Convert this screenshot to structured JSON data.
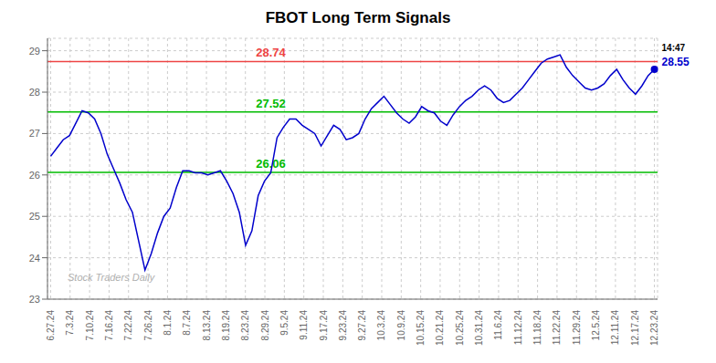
{
  "chart_data": {
    "type": "line",
    "title": "FBOT Long Term Signals",
    "x": [
      0,
      1,
      2,
      3,
      4,
      5,
      6,
      7,
      8,
      9,
      10,
      11,
      12,
      13,
      14,
      15,
      16,
      17,
      18,
      19,
      20,
      21,
      22,
      23,
      24,
      25,
      26,
      27,
      28,
      29,
      30,
      31,
      32,
      33,
      34,
      35,
      36,
      37,
      38,
      39,
      40,
      41,
      42,
      43,
      44,
      45,
      46,
      47,
      48,
      49,
      50,
      51,
      52,
      53,
      54,
      55,
      56,
      57,
      58,
      59,
      60,
      61,
      62,
      63,
      64,
      65,
      66,
      67,
      68,
      69,
      70,
      71,
      72,
      73,
      74,
      75,
      76,
      77,
      78,
      79,
      80,
      81,
      82,
      83,
      84,
      85,
      86,
      87,
      88,
      89,
      90,
      91,
      92,
      93,
      94,
      95,
      96
    ],
    "values": [
      26.45,
      26.65,
      26.85,
      26.95,
      27.25,
      27.55,
      27.5,
      27.35,
      27.0,
      26.5,
      26.15,
      25.8,
      25.4,
      25.1,
      24.4,
      23.7,
      24.1,
      24.6,
      25.0,
      25.2,
      25.7,
      26.1,
      26.1,
      26.05,
      26.05,
      26.0,
      26.05,
      26.1,
      25.85,
      25.55,
      25.1,
      24.3,
      24.65,
      25.5,
      25.85,
      26.05,
      26.9,
      27.15,
      27.35,
      27.35,
      27.2,
      27.1,
      27.0,
      26.7,
      26.95,
      27.2,
      27.1,
      26.85,
      26.9,
      27.0,
      27.35,
      27.6,
      27.75,
      27.9,
      27.7,
      27.5,
      27.35,
      27.25,
      27.4,
      27.65,
      27.55,
      27.5,
      27.3,
      27.2,
      27.45,
      27.65,
      27.8,
      27.9,
      28.05,
      28.15,
      28.05,
      27.85,
      27.75,
      27.8,
      27.95,
      28.1,
      28.3,
      28.5,
      28.7,
      28.8,
      28.85,
      28.9,
      28.6,
      28.4,
      28.25,
      28.1,
      28.05,
      28.1,
      28.2,
      28.4,
      28.55,
      28.3,
      28.1,
      27.95,
      28.15,
      28.4,
      28.55
    ],
    "color": "#0000cc",
    "xlim": [
      -0.5,
      96.5
    ],
    "xticks": [
      {
        "value": 0,
        "label": "6.27.24"
      },
      {
        "value": 3.0967741935,
        "label": "7.3.24"
      },
      {
        "value": 6.1935483871,
        "label": "7.10.24"
      },
      {
        "value": 9.2903225806,
        "label": "7.16.24"
      },
      {
        "value": 12.3870967742,
        "label": "7.22.24"
      },
      {
        "value": 15.4838709677,
        "label": "7.26.24"
      },
      {
        "value": 18.5806451613,
        "label": "8.1.24"
      },
      {
        "value": 21.6774193548,
        "label": "8.7.24"
      },
      {
        "value": 24.7741935484,
        "label": "8.13.24"
      },
      {
        "value": 27.8709677419,
        "label": "8.19.24"
      },
      {
        "value": 30.9677419355,
        "label": "8.23.24"
      },
      {
        "value": 34.064516129,
        "label": "8.29.24"
      },
      {
        "value": 37.1612903226,
        "label": "9.5.24"
      },
      {
        "value": 40.2580645161,
        "label": "9.11.24"
      },
      {
        "value": 43.3548387097,
        "label": "9.17.24"
      },
      {
        "value": 46.4516129032,
        "label": "9.23.24"
      },
      {
        "value": 49.5483870968,
        "label": "9.27.24"
      },
      {
        "value": 52.6451612903,
        "label": "10.3.24"
      },
      {
        "value": 55.7419354839,
        "label": "10.9.24"
      },
      {
        "value": 58.8387096774,
        "label": "10.15.24"
      },
      {
        "value": 61.935483871,
        "label": "10.21.24"
      },
      {
        "value": 65.0322580645,
        "label": "10.25.24"
      },
      {
        "value": 68.1290322581,
        "label": "10.31.24"
      },
      {
        "value": 71.2258064516,
        "label": "11.6.24"
      },
      {
        "value": 74.3225806452,
        "label": "11.12.24"
      },
      {
        "value": 77.4193548387,
        "label": "11.18.24"
      },
      {
        "value": 80.5161290323,
        "label": "11.22.24"
      },
      {
        "value": 83.6129032258,
        "label": "11.29.24"
      },
      {
        "value": 86.7096774194,
        "label": "12.5.24"
      },
      {
        "value": 89.8064516129,
        "label": "12.11.24"
      },
      {
        "value": 92.9032258065,
        "label": "12.17.24"
      },
      {
        "value": 96,
        "label": "12.23.24"
      }
    ],
    "ylim": [
      23,
      29.3
    ],
    "yticks": [
      23,
      24,
      25,
      26,
      27,
      28,
      29
    ],
    "grid": true,
    "reference_lines": [
      {
        "value": 28.74,
        "label": "28.74",
        "color": "#ee4444"
      },
      {
        "value": 27.52,
        "label": "27.52",
        "color": "#00bb00"
      },
      {
        "value": 26.06,
        "label": "26.06",
        "color": "#00bb00"
      }
    ],
    "last_point": {
      "x": 96,
      "y": 28.55,
      "time": "14:47",
      "label": "28.55"
    },
    "watermark": "Stock Traders Daily"
  }
}
